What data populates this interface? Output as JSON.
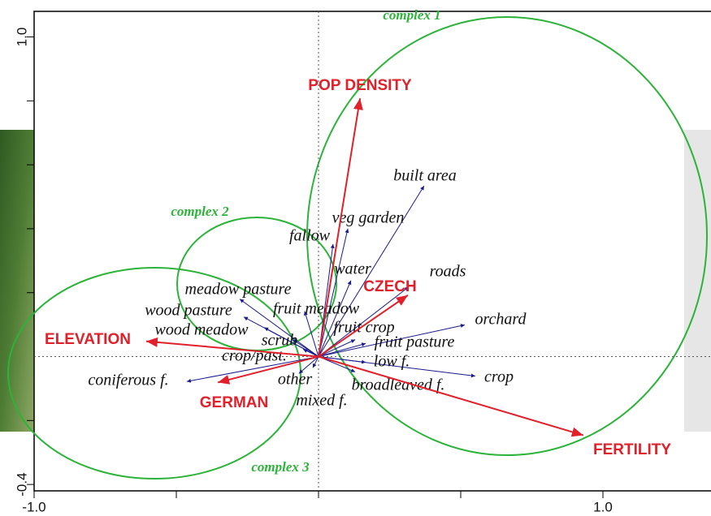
{
  "chart_data": {
    "type": "biplot",
    "xlim": [
      -1.0,
      1.38
    ],
    "ylim": [
      -0.42,
      1.08
    ],
    "xticks": [
      {
        "value": -1.0,
        "label": "-1.0"
      },
      {
        "value": 1.0,
        "label": "1.0"
      }
    ],
    "yticks": [
      {
        "value": -0.4,
        "label": "-0.4"
      },
      {
        "value": 1.0,
        "label": "1.0"
      }
    ],
    "x_minor_ticks": [
      -0.5,
      0,
      0.5
    ],
    "y_minor_ticks": [
      -0.2,
      0.2,
      0.4,
      0.6,
      0.8
    ],
    "environmental": {
      "color": "#e0202a",
      "names": [
        "POP DENSITY",
        "CZECH",
        "ELEVATION",
        "GERMAN",
        "FERTILITY"
      ],
      "x": [
        0.146,
        0.314,
        -0.606,
        -0.354,
        0.931
      ],
      "y": [
        0.808,
        0.192,
        0.048,
        -0.081,
        -0.246
      ]
    },
    "species": {
      "color": "#1a1a8c",
      "names": [
        "built area",
        "veg garden",
        "fallow",
        "water",
        "roads",
        "meadow pasture",
        "fruit meadow",
        "wood pasture",
        "wood meadow",
        "scrub",
        "crop/past.",
        "fruit crop",
        "fruit pasture",
        "orchard",
        "low f.",
        "crop",
        "broadleaved f.",
        "other",
        "mixed f.",
        "coniferous f."
      ],
      "x": [
        0.371,
        0.103,
        0.051,
        0.114,
        0.317,
        -0.277,
        -0.049,
        -0.263,
        -0.191,
        -0.091,
        -0.054,
        0.129,
        0.166,
        0.514,
        0.166,
        0.551,
        0.129,
        -0.02,
        -0.069,
        -0.463
      ],
      "y": [
        0.534,
        0.4,
        0.352,
        0.238,
        0.218,
        0.18,
        0.142,
        0.124,
        0.091,
        0.053,
        0.023,
        0.053,
        0.041,
        0.099,
        -0.018,
        -0.061,
        -0.048,
        -0.035,
        -0.053,
        -0.078
      ]
    },
    "groups": {
      "color": "#2db33a",
      "names": [
        "complex 1",
        "complex 2",
        "complex 3"
      ]
    }
  }
}
